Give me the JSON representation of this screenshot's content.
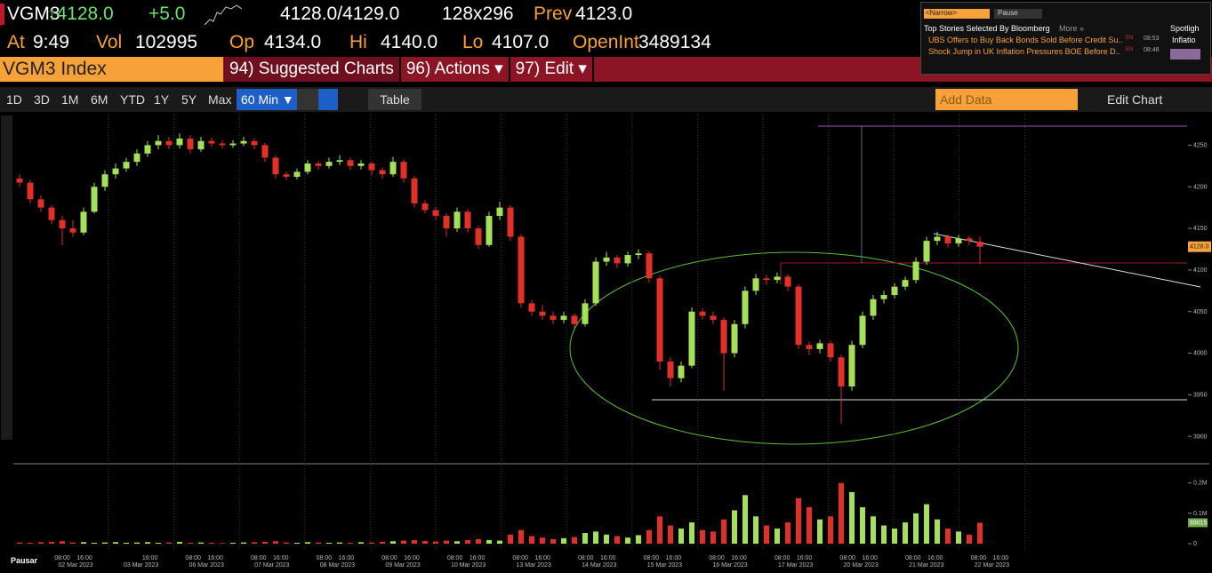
{
  "header": {
    "ticker": "VGM3",
    "last": "↑4128.0",
    "change": "+5.0",
    "bid_ask": "4128.0/4129.0",
    "size": "128x296",
    "prev_label": "Prev",
    "prev": "4123.0",
    "at_label": "At",
    "at": "9:49",
    "vol_label": "Vol",
    "vol": "102995",
    "op_label": "Op",
    "op": "4134.0",
    "hi_label": "Hi",
    "hi": "4140.0",
    "lo_label": "Lo",
    "lo": "4107.0",
    "oi_label": "OpenInt",
    "oi": "3489134"
  },
  "menu": {
    "security": "VGM3 Index",
    "items": [
      "94) Suggested Charts",
      "96) Actions ▾",
      "97) Edit ▾"
    ]
  },
  "news": {
    "search": "<Narrow>",
    "pause": "Pause",
    "heading": "Top Stories Selected By Bloomberg",
    "more": "More »",
    "side": [
      "Spotligh",
      "Inflatio"
    ],
    "items": [
      {
        "text": "UBS Offers to Buy Back Bonds Sold Before Credit Su..",
        "lang": "EN",
        "time": "08:53"
      },
      {
        "text": "Shock Jump in UK Inflation Pressures BOE Before D..",
        "lang": "EN",
        "time": "08:48"
      }
    ]
  },
  "toolbar": {
    "ranges": [
      "1D",
      "3D",
      "1M",
      "6M",
      "YTD",
      "1Y",
      "5Y",
      "Max"
    ],
    "interval": "60 Min ▼",
    "table": "Table",
    "add_data": "Add Data",
    "edit_chart": "Edit Chart"
  },
  "chart": {
    "type": "candlestick",
    "ylim": [
      3880,
      4275
    ],
    "yticks": [
      3900,
      3950,
      4000,
      4050,
      4100,
      4150,
      4200,
      4250
    ],
    "candles": [
      [
        4210,
        4215,
        4200,
        4205
      ],
      [
        4205,
        4208,
        4180,
        4185
      ],
      [
        4185,
        4190,
        4170,
        4175
      ],
      [
        4175,
        4178,
        4155,
        4160
      ],
      [
        4160,
        4165,
        4130,
        4150
      ],
      [
        4150,
        4160,
        4140,
        4145
      ],
      [
        4145,
        4175,
        4142,
        4170
      ],
      [
        4170,
        4205,
        4168,
        4200
      ],
      [
        4200,
        4220,
        4195,
        4215
      ],
      [
        4215,
        4228,
        4210,
        4222
      ],
      [
        4222,
        4235,
        4218,
        4230
      ],
      [
        4230,
        4245,
        4225,
        4240
      ],
      [
        4240,
        4255,
        4236,
        4250
      ],
      [
        4250,
        4262,
        4245,
        4255
      ],
      [
        4255,
        4260,
        4245,
        4250
      ],
      [
        4250,
        4264,
        4246,
        4258
      ],
      [
        4258,
        4262,
        4240,
        4245
      ],
      [
        4245,
        4260,
        4242,
        4255
      ],
      [
        4255,
        4259,
        4248,
        4252
      ],
      [
        4252,
        4256,
        4246,
        4250
      ],
      [
        4250,
        4256,
        4247,
        4252
      ],
      [
        4252,
        4260,
        4249,
        4255
      ],
      [
        4255,
        4258,
        4245,
        4250
      ],
      [
        4250,
        4253,
        4230,
        4235
      ],
      [
        4235,
        4238,
        4210,
        4215
      ],
      [
        4215,
        4218,
        4208,
        4212
      ],
      [
        4212,
        4222,
        4209,
        4218
      ],
      [
        4218,
        4232,
        4215,
        4228
      ],
      [
        4228,
        4231,
        4220,
        4225
      ],
      [
        4225,
        4235,
        4222,
        4230
      ],
      [
        4230,
        4238,
        4226,
        4232
      ],
      [
        4232,
        4235,
        4220,
        4225
      ],
      [
        4225,
        4232,
        4221,
        4228
      ],
      [
        4228,
        4230,
        4214,
        4220
      ],
      [
        4220,
        4223,
        4210,
        4215
      ],
      [
        4215,
        4236,
        4212,
        4230
      ],
      [
        4230,
        4233,
        4205,
        4210
      ],
      [
        4210,
        4213,
        4175,
        4180
      ],
      [
        4180,
        4184,
        4168,
        4172
      ],
      [
        4172,
        4176,
        4160,
        4165
      ],
      [
        4165,
        4168,
        4140,
        4150
      ],
      [
        4150,
        4175,
        4146,
        4170
      ],
      [
        4170,
        4173,
        4145,
        4150
      ],
      [
        4150,
        4153,
        4125,
        4130
      ],
      [
        4130,
        4170,
        4128,
        4165
      ],
      [
        4165,
        4182,
        4160,
        4175
      ],
      [
        4175,
        4178,
        4135,
        4140
      ],
      [
        4140,
        4143,
        4055,
        4060
      ],
      [
        4060,
        4064,
        4045,
        4050
      ],
      [
        4050,
        4058,
        4040,
        4045
      ],
      [
        4045,
        4050,
        4035,
        4040
      ],
      [
        4040,
        4050,
        4036,
        4045
      ],
      [
        4045,
        4048,
        4030,
        4035
      ],
      [
        4035,
        4065,
        4032,
        4060
      ],
      [
        4060,
        4115,
        4057,
        4110
      ],
      [
        4110,
        4122,
        4105,
        4115
      ],
      [
        4115,
        4118,
        4102,
        4108
      ],
      [
        4108,
        4122,
        4104,
        4118
      ],
      [
        4118,
        4125,
        4113,
        4120
      ],
      [
        4120,
        4123,
        4085,
        4090
      ],
      [
        4090,
        4093,
        3980,
        3990
      ],
      [
        3990,
        3995,
        3960,
        3970
      ],
      [
        3970,
        3990,
        3965,
        3985
      ],
      [
        3985,
        4055,
        3982,
        4050
      ],
      [
        4050,
        4054,
        4040,
        4045
      ],
      [
        4045,
        4050,
        4035,
        4040
      ],
      [
        4040,
        4043,
        3955,
        4000
      ],
      [
        4000,
        4040,
        3995,
        4035
      ],
      [
        4035,
        4080,
        4030,
        4075
      ],
      [
        4075,
        4095,
        4070,
        4090
      ],
      [
        4090,
        4094,
        4082,
        4088
      ],
      [
        4088,
        4097,
        4084,
        4092
      ],
      [
        4092,
        4095,
        4075,
        4080
      ],
      [
        4080,
        4083,
        4005,
        4010
      ],
      [
        4010,
        4014,
        3998,
        4005
      ],
      [
        4005,
        4016,
        4000,
        4012
      ],
      [
        4012,
        4015,
        3990,
        3995
      ],
      [
        3995,
        3998,
        3915,
        3960
      ],
      [
        3960,
        4015,
        3955,
        4010
      ],
      [
        4010,
        4050,
        4006,
        4045
      ],
      [
        4045,
        4070,
        4040,
        4065
      ],
      [
        4065,
        4075,
        4060,
        4070
      ],
      [
        4070,
        4084,
        4066,
        4080
      ],
      [
        4080,
        4092,
        4076,
        4088
      ],
      [
        4088,
        4115,
        4084,
        4110
      ],
      [
        4110,
        4140,
        4106,
        4135
      ],
      [
        4135,
        4146,
        4130,
        4140
      ],
      [
        4140,
        4143,
        4127,
        4132
      ],
      [
        4132,
        4142,
        4128,
        4138
      ],
      [
        4138,
        4141,
        4130,
        4135
      ],
      [
        4134,
        4140,
        4107,
        4128
      ]
    ],
    "last_tag": "4128.0",
    "volume": {
      "ylim": [
        0,
        240000
      ],
      "yticks": [
        0,
        {
          "value": 100000,
          "label": "0.1M"
        },
        {
          "value": 200000,
          "label": "0.2M"
        }
      ],
      "tag": "69015",
      "values": [
        4000,
        3000,
        5000,
        6000,
        8000,
        4000,
        5000,
        3000,
        4000,
        5000,
        3000,
        4000,
        5000,
        3000,
        4000,
        6000,
        3000,
        4000,
        3000,
        2000,
        3000,
        4000,
        5000,
        6000,
        8000,
        4000,
        3000,
        5000,
        4000,
        3000,
        4000,
        3000,
        5000,
        4000,
        6000,
        8000,
        10000,
        12000,
        9000,
        7000,
        10000,
        8000,
        12000,
        15000,
        12000,
        10000,
        30000,
        45000,
        25000,
        20000,
        15000,
        18000,
        22000,
        35000,
        40000,
        30000,
        25000,
        20000,
        28000,
        45000,
        90000,
        60000,
        50000,
        70000,
        45000,
        40000,
        80000,
        110000,
        160000,
        90000,
        60000,
        50000,
        70000,
        150000,
        120000,
        80000,
        90000,
        200000,
        170000,
        120000,
        90000,
        60000,
        50000,
        70000,
        100000,
        130000,
        80000,
        50000,
        40000,
        30000,
        69015
      ]
    },
    "x_axis": {
      "days": [
        {
          "date": "02 Mar 2023",
          "times": [
            "08:00",
            "16:00"
          ]
        },
        {
          "date": "03 Mar 2023",
          "times": [
            "16:00"
          ]
        },
        {
          "date": "06 Mar 2023",
          "times": [
            "08:00",
            "16:00"
          ]
        },
        {
          "date": "07 Mar 2023",
          "times": [
            "08:00",
            "16:00"
          ]
        },
        {
          "date": "08 Mar 2023",
          "times": [
            "08:00",
            "16:00"
          ]
        },
        {
          "date": "09 Mar 2023",
          "times": [
            "08:00",
            "16:00"
          ]
        },
        {
          "date": "10 Mar 2023",
          "times": [
            "08:00",
            "16:00"
          ]
        },
        {
          "date": "13 Mar 2023",
          "times": [
            "08:00",
            "16:00"
          ]
        },
        {
          "date": "14 Mar 2023",
          "times": [
            "08:00",
            "16:00"
          ]
        },
        {
          "date": "15 Mar 2023",
          "times": [
            "08:00",
            "16:00"
          ]
        },
        {
          "date": "16 Mar 2023",
          "times": [
            "08:00",
            "16:00"
          ]
        },
        {
          "date": "17 Mar 2023",
          "times": [
            "08:00",
            "16:00"
          ]
        },
        {
          "date": "20 Mar 2023",
          "times": [
            "08:00",
            "16:00"
          ]
        },
        {
          "date": "21 Mar 2023",
          "times": [
            "08:00",
            "16:00"
          ]
        },
        {
          "date": "22 Mar 2023",
          "times": [
            "08:00",
            "16:00"
          ]
        }
      ]
    }
  },
  "status": "Pausar"
}
